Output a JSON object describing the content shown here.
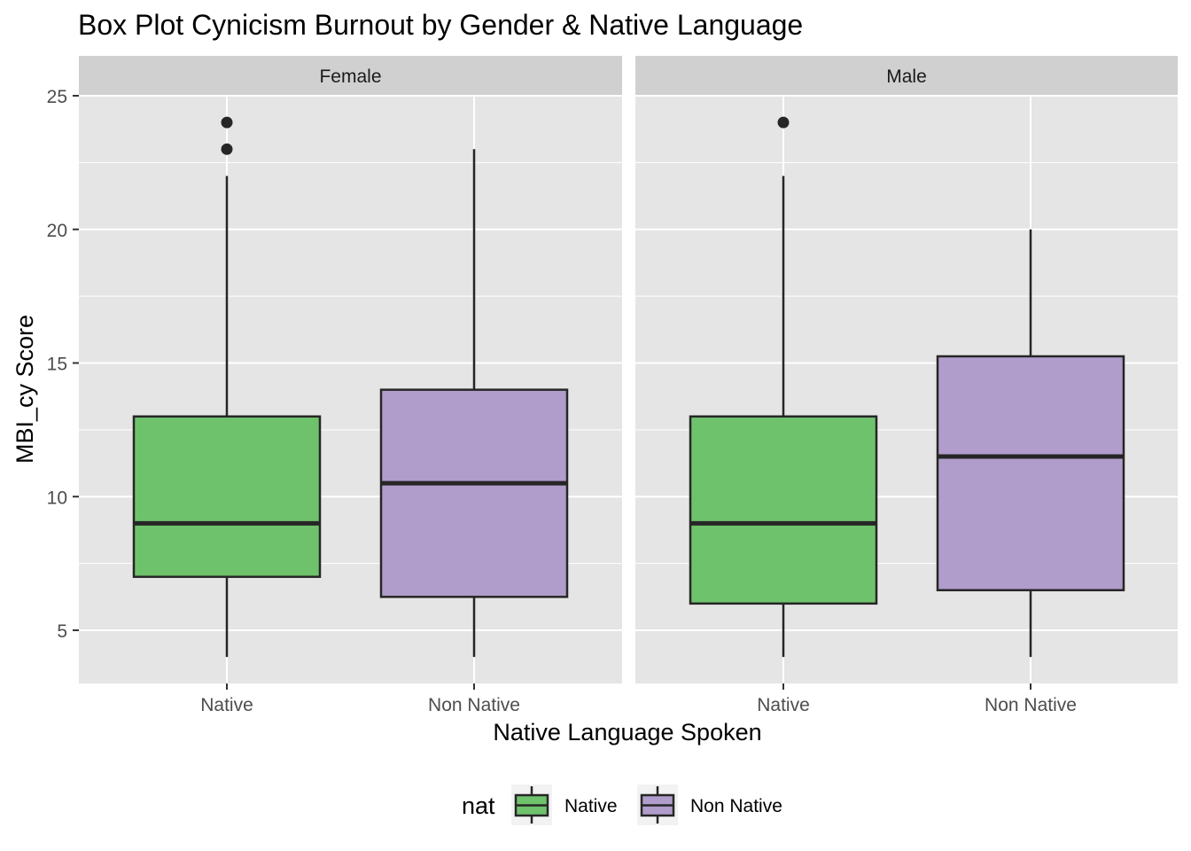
{
  "chart_data": {
    "type": "box",
    "title": "Box Plot Cynicism Burnout by Gender & Native Language",
    "xlabel": "Native Language Spoken",
    "ylabel": "MBI_cy Score",
    "ylim": [
      3,
      26
    ],
    "yticks": [
      5,
      10,
      15,
      20,
      25
    ],
    "categories": [
      "Native",
      "Non Native"
    ],
    "facets": [
      {
        "name": "Female",
        "boxes": [
          {
            "category": "Native",
            "min": 4,
            "q1": 7,
            "median": 9,
            "q3": 13,
            "max": 22,
            "outliers": [
              23,
              24
            ]
          },
          {
            "category": "Non Native",
            "min": 4,
            "q1": 6.25,
            "median": 10.5,
            "q3": 14,
            "max": 23,
            "outliers": []
          }
        ]
      },
      {
        "name": "Male",
        "boxes": [
          {
            "category": "Native",
            "min": 4,
            "q1": 6,
            "median": 9,
            "q3": 13,
            "max": 22,
            "outliers": [
              24
            ]
          },
          {
            "category": "Non Native",
            "min": 4,
            "q1": 6.5,
            "median": 11.5,
            "q3": 15.25,
            "max": 20,
            "outliers": []
          }
        ]
      }
    ],
    "legend": {
      "title": "nat",
      "position": "bottom",
      "items": [
        {
          "label": "Native",
          "color": "#6FC26C"
        },
        {
          "label": "Non Native",
          "color": "#B09DCB"
        }
      ]
    },
    "colors": {
      "panel_bg": "#E5E5E5",
      "strip_bg": "#D0D0D0",
      "grid": "#FFFFFF",
      "box_line": "#262626"
    },
    "grid": true
  }
}
